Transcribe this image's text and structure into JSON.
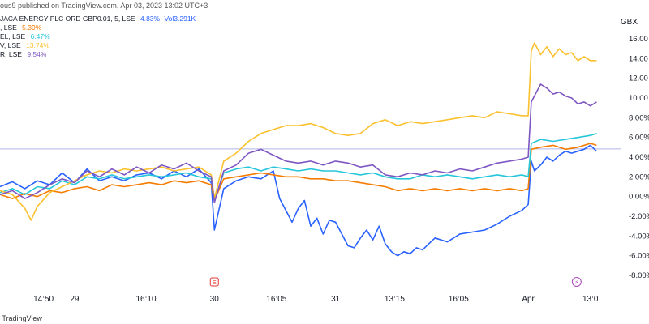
{
  "header": {
    "published": "ous9 published on TradingView.com, Apr 03, 2023 13:02 UTC+3"
  },
  "legend": {
    "main": {
      "name": "JACA ENERGY PLC ORD GBP0.01, 5, LSE",
      "change": "4.83%",
      "volume": "Vol3.291K",
      "color": "#2962ff"
    },
    "items": [
      {
        "label": ", LSE",
        "change": "5.39%",
        "color": "#f57c00"
      },
      {
        "label": "EL, LSE",
        "change": "6.47%",
        "color": "#26c6da"
      },
      {
        "label": "V, LSE",
        "change": "13.74%",
        "color": "#fbc02d"
      },
      {
        "label": "R, LSE",
        "change": "9.54%",
        "color": "#7e57c2"
      }
    ]
  },
  "footer": {
    "brand": "TradingView"
  },
  "chart_data": {
    "type": "line",
    "ylabel": "GBX",
    "ylim": [
      -8,
      16.5
    ],
    "y_ticks": [
      -8,
      -6,
      -4,
      -2,
      0,
      2,
      4,
      6,
      8,
      10,
      12,
      14,
      16
    ],
    "y_tick_labels": [
      "-8.00%",
      "-6.00%",
      "-4.00%",
      "-2.00%",
      "0.00%",
      "2.00%",
      "4.00%",
      "6.00%",
      "8.00%",
      "10.00",
      "12.00",
      "14.00",
      "16.00"
    ],
    "x_ticks": [
      {
        "x": 0.07,
        "label": "14:50"
      },
      {
        "x": 0.12,
        "label": "29"
      },
      {
        "x": 0.235,
        "label": "16:10"
      },
      {
        "x": 0.345,
        "label": "30"
      },
      {
        "x": 0.445,
        "label": "16:05"
      },
      {
        "x": 0.54,
        "label": "31"
      },
      {
        "x": 0.635,
        "label": "13:15"
      },
      {
        "x": 0.738,
        "label": "16:05"
      },
      {
        "x": 0.85,
        "label": "Apr"
      },
      {
        "x": 0.95,
        "label": "13:0"
      }
    ],
    "reference_line": 4.83,
    "annotations": [
      {
        "x": 0.345,
        "label": "E",
        "type": "earnings"
      },
      {
        "x": 0.928,
        "label": "⚡",
        "type": "event"
      }
    ],
    "series": [
      {
        "color": "#2962ff",
        "points": [
          [
            0,
            1
          ],
          [
            0.02,
            1.5
          ],
          [
            0.04,
            0.8
          ],
          [
            0.06,
            1.6
          ],
          [
            0.08,
            1.2
          ],
          [
            0.1,
            2.4
          ],
          [
            0.12,
            1.4
          ],
          [
            0.14,
            2.8
          ],
          [
            0.16,
            1.6
          ],
          [
            0.18,
            2
          ],
          [
            0.2,
            1.6
          ],
          [
            0.22,
            2.2
          ],
          [
            0.24,
            2.4
          ],
          [
            0.26,
            1.8
          ],
          [
            0.28,
            2.6
          ],
          [
            0.3,
            2
          ],
          [
            0.32,
            2.8
          ],
          [
            0.34,
            1.4
          ],
          [
            0.345,
            -3.4
          ],
          [
            0.36,
            0.8
          ],
          [
            0.38,
            1.6
          ],
          [
            0.4,
            2
          ],
          [
            0.42,
            1.8
          ],
          [
            0.44,
            2.6
          ],
          [
            0.45,
            -0.2
          ],
          [
            0.46,
            -1.4
          ],
          [
            0.47,
            -2.6
          ],
          [
            0.48,
            -1.2
          ],
          [
            0.49,
            -0.4
          ],
          [
            0.5,
            -3
          ],
          [
            0.51,
            -2.2
          ],
          [
            0.52,
            -3.8
          ],
          [
            0.53,
            -2.4
          ],
          [
            0.54,
            -2.6
          ],
          [
            0.55,
            -3.8
          ],
          [
            0.56,
            -5
          ],
          [
            0.57,
            -5.2
          ],
          [
            0.58,
            -4.2
          ],
          [
            0.59,
            -3.4
          ],
          [
            0.6,
            -4.4
          ],
          [
            0.61,
            -3
          ],
          [
            0.62,
            -4.8
          ],
          [
            0.63,
            -5.6
          ],
          [
            0.64,
            -6
          ],
          [
            0.65,
            -5.6
          ],
          [
            0.66,
            -5.8
          ],
          [
            0.67,
            -5.2
          ],
          [
            0.68,
            -5.4
          ],
          [
            0.69,
            -4.8
          ],
          [
            0.7,
            -4.2
          ],
          [
            0.72,
            -4.6
          ],
          [
            0.74,
            -3.8
          ],
          [
            0.76,
            -3.6
          ],
          [
            0.78,
            -3.4
          ],
          [
            0.8,
            -2.8
          ],
          [
            0.82,
            -2
          ],
          [
            0.84,
            -1.4
          ],
          [
            0.85,
            -0.8
          ],
          [
            0.855,
            3.6
          ],
          [
            0.86,
            2.6
          ],
          [
            0.87,
            3.2
          ],
          [
            0.88,
            4
          ],
          [
            0.89,
            3.6
          ],
          [
            0.9,
            4.2
          ],
          [
            0.91,
            4.6
          ],
          [
            0.92,
            4.4
          ],
          [
            0.93,
            4.6
          ],
          [
            0.94,
            4.8
          ],
          [
            0.95,
            5.2
          ],
          [
            0.96,
            4.6
          ]
        ]
      },
      {
        "color": "#f57c00",
        "points": [
          [
            0,
            0.2
          ],
          [
            0.02,
            -0.2
          ],
          [
            0.04,
            0.3
          ],
          [
            0.06,
            0
          ],
          [
            0.08,
            0.6
          ],
          [
            0.1,
            0.4
          ],
          [
            0.12,
            0.8
          ],
          [
            0.14,
            1
          ],
          [
            0.16,
            0.6
          ],
          [
            0.18,
            1.2
          ],
          [
            0.2,
            1
          ],
          [
            0.22,
            1.2
          ],
          [
            0.24,
            1.4
          ],
          [
            0.26,
            1.2
          ],
          [
            0.28,
            1.6
          ],
          [
            0.3,
            1.4
          ],
          [
            0.32,
            1.6
          ],
          [
            0.34,
            1.2
          ],
          [
            0.345,
            -0.4
          ],
          [
            0.36,
            1.8
          ],
          [
            0.38,
            2
          ],
          [
            0.4,
            2.2
          ],
          [
            0.42,
            2.4
          ],
          [
            0.44,
            2.2
          ],
          [
            0.46,
            2
          ],
          [
            0.48,
            2
          ],
          [
            0.5,
            1.8
          ],
          [
            0.52,
            1.8
          ],
          [
            0.54,
            1.6
          ],
          [
            0.56,
            1.6
          ],
          [
            0.58,
            1.4
          ],
          [
            0.6,
            1.2
          ],
          [
            0.62,
            1
          ],
          [
            0.64,
            0.6
          ],
          [
            0.66,
            0.8
          ],
          [
            0.68,
            0.6
          ],
          [
            0.7,
            0.8
          ],
          [
            0.72,
            0.6
          ],
          [
            0.74,
            0.8
          ],
          [
            0.76,
            0.6
          ],
          [
            0.78,
            0.8
          ],
          [
            0.8,
            0.6
          ],
          [
            0.82,
            0.8
          ],
          [
            0.84,
            0.6
          ],
          [
            0.85,
            0.8
          ],
          [
            0.855,
            4.8
          ],
          [
            0.87,
            5
          ],
          [
            0.89,
            5.2
          ],
          [
            0.91,
            4.8
          ],
          [
            0.93,
            5
          ],
          [
            0.95,
            5.4
          ],
          [
            0.96,
            5.2
          ]
        ]
      },
      {
        "color": "#26c6da",
        "points": [
          [
            0,
            0.4
          ],
          [
            0.02,
            0.8
          ],
          [
            0.04,
            0.2
          ],
          [
            0.06,
            1
          ],
          [
            0.08,
            0.8
          ],
          [
            0.1,
            1.6
          ],
          [
            0.12,
            1.2
          ],
          [
            0.14,
            2
          ],
          [
            0.16,
            1.8
          ],
          [
            0.18,
            2.2
          ],
          [
            0.2,
            1.8
          ],
          [
            0.22,
            2
          ],
          [
            0.24,
            2.2
          ],
          [
            0.26,
            2
          ],
          [
            0.28,
            2.2
          ],
          [
            0.3,
            2.4
          ],
          [
            0.32,
            2
          ],
          [
            0.34,
            1.8
          ],
          [
            0.345,
            -0.4
          ],
          [
            0.36,
            2.4
          ],
          [
            0.38,
            2.8
          ],
          [
            0.4,
            3
          ],
          [
            0.42,
            2.6
          ],
          [
            0.44,
            3
          ],
          [
            0.46,
            2.8
          ],
          [
            0.48,
            2.6
          ],
          [
            0.5,
            2.8
          ],
          [
            0.52,
            2.6
          ],
          [
            0.54,
            2.6
          ],
          [
            0.56,
            2.4
          ],
          [
            0.58,
            2.2
          ],
          [
            0.6,
            2.4
          ],
          [
            0.62,
            2
          ],
          [
            0.64,
            1.8
          ],
          [
            0.66,
            1.8
          ],
          [
            0.68,
            2.2
          ],
          [
            0.7,
            2
          ],
          [
            0.72,
            2.2
          ],
          [
            0.74,
            2
          ],
          [
            0.76,
            1.8
          ],
          [
            0.78,
            2
          ],
          [
            0.8,
            2.2
          ],
          [
            0.82,
            2
          ],
          [
            0.84,
            2.2
          ],
          [
            0.85,
            2
          ],
          [
            0.855,
            5.4
          ],
          [
            0.87,
            5.8
          ],
          [
            0.89,
            5.6
          ],
          [
            0.91,
            5.8
          ],
          [
            0.93,
            6
          ],
          [
            0.95,
            6.2
          ],
          [
            0.96,
            6.4
          ]
        ]
      },
      {
        "color": "#fbc02d",
        "points": [
          [
            0,
            0.6
          ],
          [
            0.02,
            0.2
          ],
          [
            0.04,
            -1.2
          ],
          [
            0.05,
            -2.4
          ],
          [
            0.06,
            -1
          ],
          [
            0.08,
            0.4
          ],
          [
            0.1,
            1
          ],
          [
            0.12,
            1.6
          ],
          [
            0.14,
            2.2
          ],
          [
            0.16,
            2.6
          ],
          [
            0.18,
            2.4
          ],
          [
            0.2,
            2.8
          ],
          [
            0.22,
            2.6
          ],
          [
            0.24,
            2.8
          ],
          [
            0.26,
            3
          ],
          [
            0.28,
            2.6
          ],
          [
            0.3,
            2.8
          ],
          [
            0.32,
            3
          ],
          [
            0.34,
            2.2
          ],
          [
            0.345,
            -0.2
          ],
          [
            0.36,
            3.6
          ],
          [
            0.38,
            4.4
          ],
          [
            0.4,
            5.6
          ],
          [
            0.42,
            6.4
          ],
          [
            0.44,
            6.8
          ],
          [
            0.46,
            7.2
          ],
          [
            0.48,
            7.2
          ],
          [
            0.5,
            7.4
          ],
          [
            0.52,
            7
          ],
          [
            0.54,
            6.4
          ],
          [
            0.56,
            6.2
          ],
          [
            0.58,
            6.4
          ],
          [
            0.6,
            7.4
          ],
          [
            0.62,
            7.8
          ],
          [
            0.64,
            7.2
          ],
          [
            0.66,
            7.6
          ],
          [
            0.68,
            7.4
          ],
          [
            0.7,
            7.6
          ],
          [
            0.72,
            7.8
          ],
          [
            0.74,
            8
          ],
          [
            0.76,
            8.2
          ],
          [
            0.78,
            8
          ],
          [
            0.8,
            8.6
          ],
          [
            0.82,
            8.4
          ],
          [
            0.84,
            8.2
          ],
          [
            0.85,
            8.2
          ],
          [
            0.855,
            14.8
          ],
          [
            0.86,
            15.6
          ],
          [
            0.87,
            14.4
          ],
          [
            0.88,
            15.2
          ],
          [
            0.89,
            14.2
          ],
          [
            0.9,
            15
          ],
          [
            0.91,
            14.4
          ],
          [
            0.92,
            14.6
          ],
          [
            0.93,
            13.8
          ],
          [
            0.94,
            14.2
          ],
          [
            0.95,
            13.8
          ],
          [
            0.96,
            13.8
          ]
        ]
      },
      {
        "color": "#7e57c2",
        "points": [
          [
            0,
            0.2
          ],
          [
            0.02,
            0.6
          ],
          [
            0.04,
            -0.2
          ],
          [
            0.06,
            0.4
          ],
          [
            0.08,
            1.2
          ],
          [
            0.1,
            1.8
          ],
          [
            0.12,
            1.4
          ],
          [
            0.14,
            2.6
          ],
          [
            0.16,
            2
          ],
          [
            0.18,
            2.8
          ],
          [
            0.2,
            2.2
          ],
          [
            0.22,
            3
          ],
          [
            0.24,
            2.4
          ],
          [
            0.26,
            3.2
          ],
          [
            0.28,
            2.8
          ],
          [
            0.3,
            3.4
          ],
          [
            0.32,
            2.6
          ],
          [
            0.34,
            2
          ],
          [
            0.345,
            -0.6
          ],
          [
            0.36,
            2.6
          ],
          [
            0.38,
            3.2
          ],
          [
            0.4,
            4.4
          ],
          [
            0.42,
            4.8
          ],
          [
            0.44,
            4.2
          ],
          [
            0.46,
            3.6
          ],
          [
            0.48,
            3.4
          ],
          [
            0.5,
            3.6
          ],
          [
            0.52,
            3.2
          ],
          [
            0.54,
            3.6
          ],
          [
            0.56,
            3.4
          ],
          [
            0.58,
            3
          ],
          [
            0.6,
            3.2
          ],
          [
            0.62,
            2.2
          ],
          [
            0.64,
            2
          ],
          [
            0.66,
            2.4
          ],
          [
            0.68,
            2.2
          ],
          [
            0.7,
            2.6
          ],
          [
            0.72,
            2.4
          ],
          [
            0.74,
            2.8
          ],
          [
            0.76,
            2.6
          ],
          [
            0.78,
            3
          ],
          [
            0.8,
            3.4
          ],
          [
            0.82,
            3.6
          ],
          [
            0.84,
            3.8
          ],
          [
            0.85,
            4
          ],
          [
            0.855,
            9.6
          ],
          [
            0.87,
            11.4
          ],
          [
            0.88,
            11
          ],
          [
            0.89,
            10.4
          ],
          [
            0.9,
            10.6
          ],
          [
            0.91,
            10.2
          ],
          [
            0.92,
            10
          ],
          [
            0.93,
            9.4
          ],
          [
            0.94,
            9.6
          ],
          [
            0.95,
            9.2
          ],
          [
            0.96,
            9.6
          ]
        ]
      }
    ]
  }
}
